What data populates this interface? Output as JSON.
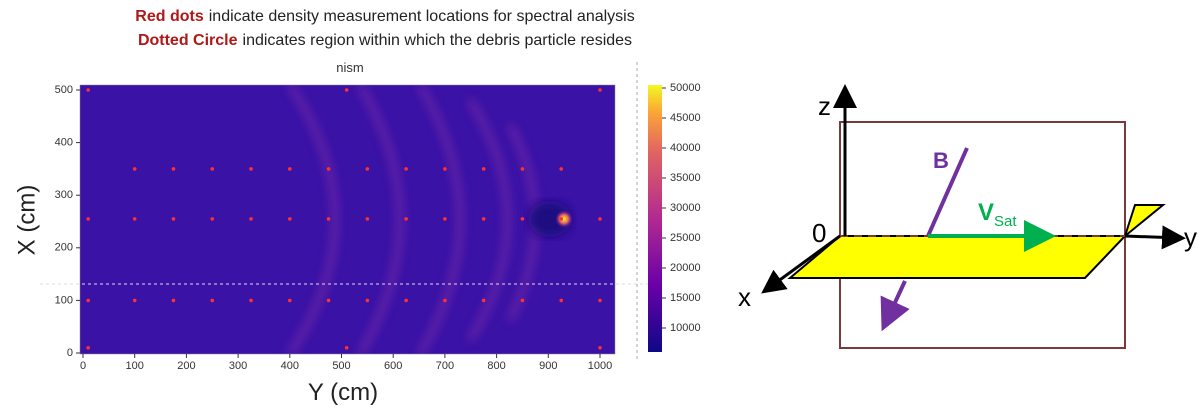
{
  "annotations": [
    {
      "highlight": "Red dots",
      "text": "indicate density measurement locations for spectral analysis"
    },
    {
      "highlight": "Dotted Circle",
      "text": "indicates region within which the debris particle resides"
    }
  ],
  "plot": {
    "title": "nism",
    "x_label": "Y (cm)",
    "y_label": "X (cm)",
    "x_ticks": [
      "0",
      "100",
      "200",
      "300",
      "400",
      "500",
      "600",
      "700",
      "800",
      "900",
      "1000"
    ],
    "y_ticks": [
      "0",
      "100",
      "200",
      "300",
      "400",
      "500"
    ],
    "colorbar_ticks": [
      "10000",
      "15000",
      "20000",
      "25000",
      "30000",
      "35000",
      "40000",
      "45000",
      "50000"
    ]
  },
  "diagram": {
    "z_axis": "z",
    "y_axis": "y",
    "x_axis": "x",
    "origin": "0",
    "field": "B",
    "velocity": {
      "symbol": "V",
      "subscript": "Sat"
    }
  }
}
